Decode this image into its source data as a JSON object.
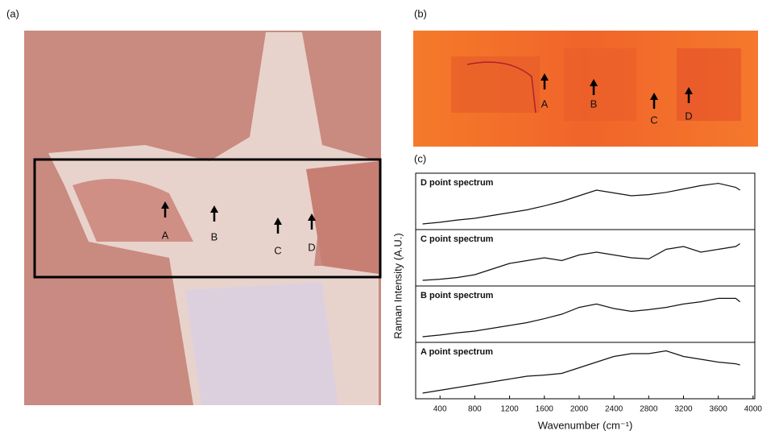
{
  "panels": {
    "a": {
      "label": "(a)",
      "points": [
        "A",
        "B",
        "C",
        "D"
      ]
    },
    "b": {
      "label": "(b)",
      "points": [
        "A",
        "B",
        "C",
        "D"
      ]
    },
    "c": {
      "label": "(c)"
    }
  },
  "chart_data": {
    "type": "line",
    "xlabel": "Wavenumber (cm⁻¹)",
    "ylabel": "Raman Intensity  (A.U.)",
    "x": [
      200,
      400,
      600,
      800,
      1000,
      1200,
      1400,
      1600,
      1800,
      2000,
      2200,
      2400,
      2600,
      2800,
      3000,
      3200,
      3400,
      3600,
      3800,
      3850
    ],
    "xlim": [
      120,
      4020
    ],
    "xticks": [
      400,
      800,
      1200,
      1600,
      2000,
      2400,
      2800,
      3200,
      3600,
      4000
    ],
    "ylim": [
      0,
      1
    ],
    "series": [
      {
        "name": "D point spectrum",
        "color": "#111111",
        "values": [
          0.1,
          0.13,
          0.17,
          0.2,
          0.25,
          0.3,
          0.35,
          0.42,
          0.5,
          0.6,
          0.7,
          0.65,
          0.6,
          0.62,
          0.66,
          0.72,
          0.78,
          0.82,
          0.75,
          0.7
        ]
      },
      {
        "name": "C point spectrum",
        "color": "#111111",
        "values": [
          0.1,
          0.12,
          0.15,
          0.2,
          0.3,
          0.4,
          0.45,
          0.5,
          0.45,
          0.55,
          0.6,
          0.55,
          0.5,
          0.48,
          0.65,
          0.7,
          0.6,
          0.65,
          0.7,
          0.75
        ]
      },
      {
        "name": "B point spectrum",
        "color": "#111111",
        "values": [
          0.1,
          0.13,
          0.17,
          0.2,
          0.25,
          0.3,
          0.35,
          0.42,
          0.5,
          0.62,
          0.68,
          0.6,
          0.55,
          0.58,
          0.62,
          0.68,
          0.72,
          0.78,
          0.78,
          0.72
        ]
      },
      {
        "name": "A point spectrum",
        "color": "#111111",
        "values": [
          0.1,
          0.15,
          0.2,
          0.25,
          0.3,
          0.35,
          0.4,
          0.42,
          0.45,
          0.55,
          0.65,
          0.75,
          0.8,
          0.8,
          0.85,
          0.75,
          0.7,
          0.65,
          0.62,
          0.6
        ]
      }
    ]
  }
}
